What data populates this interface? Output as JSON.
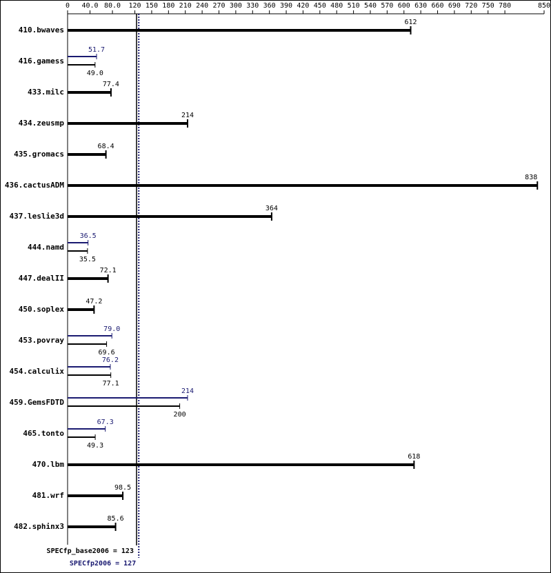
{
  "chart_data": {
    "type": "bar",
    "orientation": "horizontal",
    "categories": [
      "410.bwaves",
      "416.gamess",
      "433.milc",
      "434.zeusmp",
      "435.gromacs",
      "436.cactusADM",
      "437.leslie3d",
      "444.namd",
      "447.dealII",
      "450.soplex",
      "453.povray",
      "454.calculix",
      "459.GemsFDTD",
      "465.tonto",
      "470.lbm",
      "481.wrf",
      "482.sphinx3"
    ],
    "series": [
      {
        "role": "peak",
        "color": "#191970",
        "values": [
          null,
          51.7,
          null,
          null,
          null,
          null,
          null,
          36.5,
          null,
          null,
          79.0,
          76.2,
          214,
          67.3,
          null,
          null,
          null
        ],
        "value_labels": [
          null,
          "51.7",
          null,
          null,
          null,
          null,
          null,
          "36.5",
          null,
          null,
          "79.0",
          "76.2",
          "214",
          "67.3",
          null,
          null,
          null
        ]
      },
      {
        "role": "base",
        "color": "#000000",
        "values": [
          612,
          49.0,
          77.4,
          214,
          68.4,
          838,
          364,
          35.5,
          72.1,
          47.2,
          69.6,
          77.1,
          200,
          49.3,
          618,
          98.5,
          85.6
        ],
        "value_labels": [
          "612",
          "49.0",
          "77.4",
          "214",
          "68.4",
          "838",
          "364",
          "35.5",
          "72.1",
          "47.2",
          "69.6",
          "77.1",
          "200",
          "49.3",
          "618",
          "98.5",
          "85.6"
        ]
      }
    ],
    "xlim": [
      0,
      850
    ],
    "xticks": [
      0,
      {
        "value": 40,
        "label": "40.0"
      },
      {
        "value": 80,
        "label": "80.0"
      },
      120,
      150,
      180,
      210,
      240,
      270,
      300,
      330,
      360,
      390,
      420,
      450,
      480,
      510,
      540,
      570,
      600,
      630,
      660,
      690,
      720,
      750,
      780,
      850
    ],
    "reference_lines": [
      {
        "label": "SPECfp_base2006 = 123",
        "value": 123,
        "color": "#000000",
        "style": "solid"
      },
      {
        "label": "SPECfp2006 = 127",
        "value": 127,
        "color": "#191970",
        "style": "dotted"
      }
    ]
  }
}
